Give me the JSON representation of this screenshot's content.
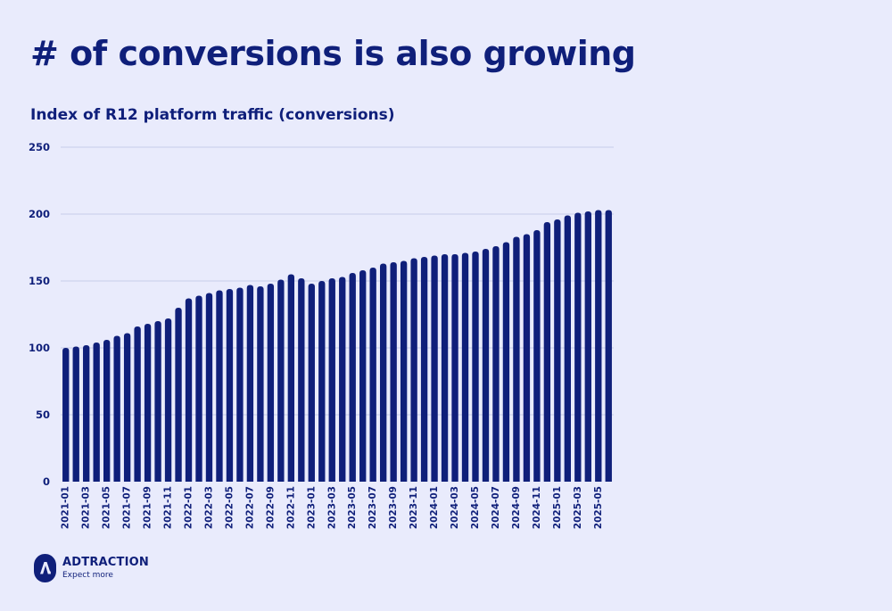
{
  "slide": {
    "title": "# of conversions is also growing"
  },
  "brand": {
    "name": "ADTRACTION",
    "tagline": "Expect more",
    "icon": "adtraction-logo-icon"
  },
  "colors": {
    "background": "#e9ebfc",
    "bar": "#0f1f7a",
    "text": "#0f1f7a",
    "gridline": "#c8ccea"
  },
  "chart_data": {
    "type": "bar",
    "title": "Index of R12 platform traffic (conversions)",
    "xlabel": "",
    "ylabel": "",
    "ylim": [
      0,
      250
    ],
    "yticks": [
      0,
      50,
      100,
      150,
      200,
      250
    ],
    "grid": true,
    "legend": "none",
    "categories": [
      "2021-01",
      "2021-02",
      "2021-03",
      "2021-04",
      "2021-05",
      "2021-06",
      "2021-07",
      "2021-08",
      "2021-09",
      "2021-10",
      "2021-11",
      "2021-12",
      "2022-01",
      "2022-02",
      "2022-03",
      "2022-04",
      "2022-05",
      "2022-06",
      "2022-07",
      "2022-08",
      "2022-09",
      "2022-10",
      "2022-11",
      "2022-12",
      "2023-01",
      "2023-02",
      "2023-03",
      "2023-04",
      "2023-05",
      "2023-06",
      "2023-07",
      "2023-08",
      "2023-09",
      "2023-10",
      "2023-11",
      "2023-12",
      "2024-01",
      "2024-02",
      "2024-03",
      "2024-04",
      "2024-05",
      "2024-06",
      "2024-07",
      "2024-08",
      "2024-09",
      "2024-10",
      "2024-11",
      "2024-12",
      "2025-01",
      "2025-02",
      "2025-03",
      "2025-04",
      "2025-05",
      "2025-06"
    ],
    "tick_labels": [
      "2021-01",
      "2021-03",
      "2021-05",
      "2021-07",
      "2021-09",
      "2021-11",
      "2022-01",
      "2022-03",
      "2022-05",
      "2022-07",
      "2022-09",
      "2022-11",
      "2023-01",
      "2023-03",
      "2023-05",
      "2023-07",
      "2023-09",
      "2023-11",
      "2024-01",
      "2024-03",
      "2024-05",
      "2024-07",
      "2024-09",
      "2024-11",
      "2025-01",
      "2025-03",
      "2025-05"
    ],
    "values": [
      100,
      101,
      102,
      104,
      106,
      109,
      111,
      116,
      118,
      120,
      122,
      130,
      137,
      139,
      141,
      143,
      144,
      145,
      147,
      146,
      148,
      151,
      155,
      152,
      148,
      150,
      152,
      153,
      156,
      158,
      160,
      163,
      164,
      165,
      167,
      168,
      169,
      170,
      170,
      171,
      172,
      174,
      176,
      179,
      183,
      185,
      188,
      194,
      196,
      199,
      201,
      202,
      203,
      203
    ]
  }
}
